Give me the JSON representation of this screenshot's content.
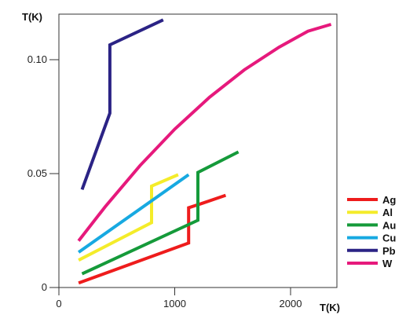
{
  "chart_data": {
    "type": "line",
    "title": "",
    "xlabel": "T(K)",
    "ylabel": "T(K)",
    "xlim": [
      0,
      2400
    ],
    "ylim": [
      0,
      0.12
    ],
    "x_ticks": [
      {
        "value": 0,
        "label": "0"
      },
      {
        "value": 1000,
        "label": "1000"
      },
      {
        "value": 2000,
        "label": "2000"
      }
    ],
    "y_ticks": [
      {
        "value": 0,
        "label": "0"
      },
      {
        "value": 0.05,
        "label": "0.05"
      },
      {
        "value": 0.1,
        "label": "0.10"
      }
    ],
    "grid": false,
    "legend_position": "right",
    "series": [
      {
        "name": "Ag",
        "color": "#ee1c1c",
        "x": [
          170,
          1120,
          1120,
          1240,
          1440
        ],
        "y": [
          0.002,
          0.0195,
          0.035,
          0.037,
          0.0405
        ]
      },
      {
        "name": "Al",
        "color": "#f4ec2a",
        "x": [
          170,
          800,
          800,
          1030
        ],
        "y": [
          0.012,
          0.0285,
          0.0445,
          0.0495
        ]
      },
      {
        "name": "Au",
        "color": "#159a3a",
        "x": [
          200,
          1200,
          1200,
          1550
        ],
        "y": [
          0.006,
          0.0295,
          0.0505,
          0.0595
        ]
      },
      {
        "name": "Cu",
        "color": "#17a9e1",
        "x": [
          170,
          1120
        ],
        "y": [
          0.0155,
          0.0495
        ]
      },
      {
        "name": "Pb",
        "color": "#2b2385",
        "x": [
          200,
          440,
          440,
          900
        ],
        "y": [
          0.043,
          0.0765,
          0.1065,
          0.1175
        ]
      },
      {
        "name": "W",
        "color": "#e6197c",
        "x": [
          170,
          400,
          700,
          1000,
          1300,
          1600,
          1900,
          2150,
          2350
        ],
        "y": [
          0.0205,
          0.0355,
          0.0535,
          0.0695,
          0.0835,
          0.0955,
          0.1055,
          0.1125,
          0.1155
        ]
      }
    ]
  }
}
